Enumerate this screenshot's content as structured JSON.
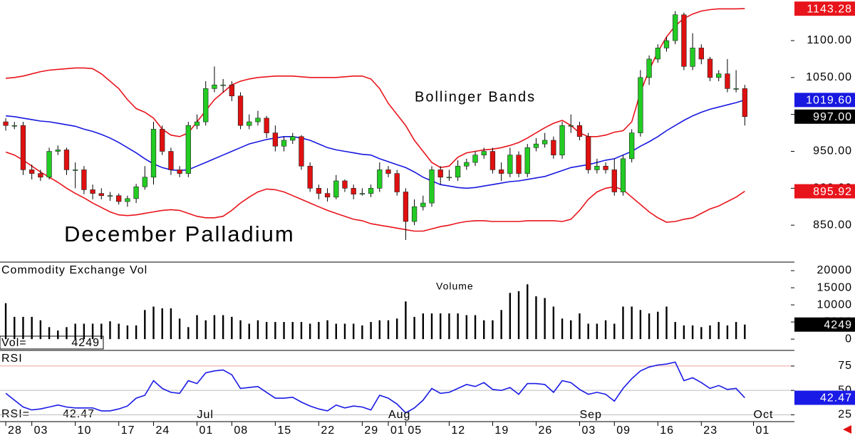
{
  "chart_data": [
    {
      "type": "candlestick",
      "title": "December Palladium",
      "annotation": "Bollinger Bands",
      "xlim": [
        -0.66,
        90.3
      ],
      "ylim": [
        800,
        1155
      ],
      "yticks": [
        {
          "value": 850,
          "label": "850.00"
        },
        {
          "value": 900,
          "label": "900.00"
        },
        {
          "value": 950,
          "label": "950.00"
        },
        {
          "value": 1000,
          "label": "1000.00"
        },
        {
          "value": 1050,
          "label": "1050.00"
        },
        {
          "value": 1100,
          "label": "1100.00"
        }
      ],
      "up_color": "#22cc22",
      "down_color": "#e01010",
      "close_label": "997.00",
      "open": [
        990,
        985,
        985,
        925,
        920,
        915,
        950,
        952,
        925,
        925,
        898,
        893,
        890,
        890,
        882,
        886,
        902,
        915,
        980,
        950,
        925,
        920,
        985,
        990,
        1035,
        1040,
        1040,
        1025,
        985,
        990,
        995,
        975,
        957,
        965,
        970,
        930,
        900,
        893,
        888,
        910,
        900,
        892,
        893,
        900,
        925,
        920,
        895,
        855,
        875,
        880,
        925,
        915,
        915,
        930,
        935,
        945,
        950,
        925,
        920,
        945,
        920,
        955,
        960,
        965,
        945,
        985,
        985,
        970,
        925,
        930,
        925,
        895,
        940,
        975,
        1050,
        1075,
        1090,
        1100,
        1135,
        1065,
        1090,
        1075,
        1050,
        1055,
        1035,
        1035
      ],
      "high": [
        995,
        990,
        990,
        932,
        925,
        955,
        958,
        955,
        935,
        930,
        905,
        900,
        895,
        893,
        890,
        906,
        930,
        990,
        985,
        955,
        930,
        990,
        1000,
        1045,
        1065,
        1048,
        1045,
        1030,
        1000,
        1005,
        998,
        985,
        970,
        975,
        972,
        935,
        905,
        900,
        918,
        912,
        905,
        900,
        905,
        935,
        930,
        925,
        900,
        885,
        890,
        930,
        930,
        925,
        938,
        940,
        950,
        955,
        955,
        935,
        955,
        950,
        960,
        968,
        975,
        970,
        990,
        1000,
        990,
        975,
        940,
        935,
        940,
        945,
        980,
        1060,
        1080,
        1095,
        1105,
        1140,
        1138,
        1110,
        1095,
        1078,
        1060,
        1075,
        1060,
        1040
      ],
      "low": [
        978,
        980,
        918,
        912,
        910,
        912,
        945,
        918,
        900,
        892,
        885,
        885,
        883,
        878,
        875,
        880,
        898,
        905,
        945,
        918,
        915,
        915,
        980,
        985,
        1030,
        1030,
        1018,
        980,
        980,
        985,
        968,
        950,
        950,
        960,
        925,
        895,
        885,
        882,
        885,
        895,
        885,
        890,
        888,
        895,
        915,
        890,
        830,
        850,
        870,
        875,
        905,
        910,
        910,
        925,
        930,
        940,
        920,
        910,
        915,
        915,
        915,
        950,
        955,
        940,
        940,
        975,
        965,
        920,
        920,
        920,
        890,
        890,
        935,
        970,
        1040,
        1070,
        1085,
        1095,
        1060,
        1060,
        1068,
        1045,
        1045,
        1030,
        1030,
        985
      ],
      "close": [
        985,
        985,
        925,
        920,
        915,
        950,
        952,
        925,
        925,
        898,
        893,
        890,
        890,
        882,
        886,
        902,
        915,
        980,
        950,
        925,
        920,
        985,
        990,
        1035,
        1040,
        1040,
        1025,
        985,
        990,
        995,
        975,
        957,
        965,
        970,
        930,
        900,
        893,
        888,
        910,
        900,
        892,
        893,
        900,
        925,
        920,
        895,
        855,
        875,
        880,
        925,
        915,
        915,
        930,
        935,
        945,
        950,
        925,
        920,
        945,
        920,
        955,
        960,
        965,
        945,
        985,
        985,
        970,
        925,
        930,
        925,
        895,
        940,
        975,
        1050,
        1075,
        1090,
        1100,
        1135,
        1065,
        1090,
        1075,
        1050,
        1055,
        1035,
        1035,
        997
      ],
      "bands": [
        {
          "color": "#e8141b",
          "values": [
            1049,
            1050,
            1052,
            1055,
            1058,
            1060,
            1061,
            1062,
            1063,
            1063,
            1062,
            1055,
            1045,
            1035,
            1020,
            1008,
            1003,
            995,
            980,
            972,
            970,
            975,
            990,
            1005,
            1020,
            1030,
            1040,
            1045,
            1048,
            1050,
            1051,
            1052,
            1052,
            1052,
            1051,
            1050,
            1050,
            1050,
            1050,
            1051,
            1052,
            1052,
            1048,
            1035,
            1015,
            1000,
            985,
            965,
            950,
            935,
            928,
            930,
            942,
            948,
            950,
            952,
            953,
            955,
            958,
            962,
            968,
            975,
            982,
            988,
            992,
            985,
            975,
            970,
            970,
            972,
            976,
            978,
            990,
            1030,
            1060,
            1085,
            1105,
            1120,
            1130,
            1136,
            1140,
            1142,
            1143,
            1143,
            1143,
            1143.28
          ]
        },
        {
          "color": "#1818e0",
          "last_label": "1019.60",
          "values": [
            998,
            997,
            995,
            993,
            991,
            990,
            988,
            986,
            984,
            980,
            977,
            973,
            968,
            962,
            955,
            948,
            940,
            933,
            928,
            925,
            924,
            925,
            930,
            935,
            940,
            945,
            950,
            955,
            960,
            963,
            966,
            968,
            970,
            970,
            968,
            965,
            960,
            955,
            952,
            950,
            948,
            946,
            945,
            940,
            936,
            932,
            928,
            922,
            915,
            910,
            905,
            903,
            901,
            900,
            901,
            903,
            905,
            907,
            909,
            910,
            912,
            914,
            916,
            920,
            924,
            928,
            930,
            932,
            935,
            938,
            940,
            945,
            950,
            957,
            963,
            970,
            978,
            985,
            992,
            998,
            1003,
            1007,
            1010,
            1013,
            1016,
            1019.6
          ]
        },
        {
          "color": "#e8141b",
          "values": [
            949,
            945,
            938,
            930,
            922,
            915,
            908,
            900,
            893,
            887,
            880,
            874,
            868,
            864,
            863,
            864,
            866,
            868,
            870,
            871,
            870,
            866,
            862,
            860,
            860,
            862,
            870,
            880,
            888,
            895,
            899,
            898,
            895,
            890,
            885,
            880,
            875,
            870,
            866,
            862,
            858,
            856,
            852,
            850,
            848,
            846,
            844,
            842,
            842,
            845,
            848,
            850,
            853,
            855,
            856,
            856,
            855,
            855,
            855,
            855,
            856,
            856,
            856,
            856,
            855,
            858,
            870,
            885,
            895,
            900,
            902,
            898,
            888,
            878,
            868,
            860,
            854,
            855,
            858,
            860,
            866,
            872,
            876,
            882,
            888,
            895.92
          ]
        }
      ]
    },
    {
      "type": "bar",
      "title": "Commodity Exchange Vol",
      "annotation": "Volume",
      "readout_label": "Vol=",
      "xlim": [
        -0.66,
        90.3
      ],
      "ylim": [
        -3300,
        22500
      ],
      "yticks": [
        0,
        5000,
        10000,
        15000,
        20000
      ],
      "color": "#000000",
      "values": [
        10500,
        6500,
        6500,
        6500,
        5500,
        3500,
        2500,
        3500,
        4500,
        4500,
        4500,
        4500,
        5200,
        4500,
        4000,
        4000,
        8500,
        9500,
        9000,
        9000,
        6000,
        3500,
        7000,
        5500,
        7000,
        7000,
        6500,
        5500,
        4500,
        5500,
        5000,
        5000,
        5000,
        5000,
        5000,
        4500,
        5000,
        5500,
        4500,
        4500,
        4500,
        4000,
        5000,
        5500,
        5500,
        6000,
        11000,
        6500,
        7500,
        7500,
        7500,
        7500,
        7500,
        7000,
        7000,
        5500,
        5500,
        8500,
        13500,
        14000,
        16000,
        12500,
        12000,
        9500,
        6000,
        5500,
        7500,
        4500,
        4500,
        5500,
        4500,
        9500,
        9500,
        8500,
        7500,
        8000,
        9500,
        5000,
        4000,
        4000,
        3500,
        4000,
        5000,
        4000,
        5000,
        4249
      ]
    },
    {
      "type": "line",
      "title": "RSI",
      "readout_label": "RSI=",
      "xlim": [
        -0.66,
        90.3
      ],
      "ylim": [
        18,
        91
      ],
      "yticks": [
        25,
        50,
        75
      ],
      "color": "#1a1ae6",
      "values": [
        47,
        40,
        33,
        30,
        31,
        33,
        35,
        33,
        32,
        32,
        32,
        29,
        29,
        31,
        34,
        42,
        45,
        60,
        52,
        48,
        47,
        60,
        57,
        68,
        70,
        71,
        66,
        52,
        53,
        54,
        48,
        42,
        42,
        43,
        38,
        34,
        31,
        29,
        35,
        32,
        34,
        33,
        30,
        45,
        42,
        36,
        27,
        32,
        40,
        52,
        47,
        48,
        52,
        56,
        54,
        58,
        51,
        50,
        53,
        46,
        57,
        57,
        56,
        48,
        60,
        58,
        51,
        46,
        48,
        46,
        39,
        52,
        62,
        70,
        74,
        76,
        77,
        79,
        60,
        63,
        58,
        52,
        55,
        51,
        52,
        42.47
      ],
      "xticks": [
        {
          "value": 0,
          "label": "28"
        },
        {
          "value": 3,
          "label": "03"
        },
        {
          "value": 8,
          "label": "10"
        },
        {
          "value": 13,
          "label": "17"
        },
        {
          "value": 17,
          "label": "24"
        },
        {
          "value": 22,
          "label": "01"
        },
        {
          "value": 26,
          "label": "08"
        },
        {
          "value": 31,
          "label": "15"
        },
        {
          "value": 36,
          "label": "22"
        },
        {
          "value": 41,
          "label": "29"
        },
        {
          "value": 44,
          "label": "01"
        },
        {
          "value": 46,
          "label": "05"
        },
        {
          "value": 51,
          "label": "12"
        },
        {
          "value": 56,
          "label": "19"
        },
        {
          "value": 61,
          "label": "26"
        },
        {
          "value": 66,
          "label": "03"
        },
        {
          "value": 70,
          "label": "09"
        },
        {
          "value": 75,
          "label": "16"
        },
        {
          "value": 80,
          "label": "23"
        },
        {
          "value": 86,
          "label": "01"
        }
      ],
      "month_ticks": [
        {
          "value": 22,
          "label": "Jul"
        },
        {
          "value": 44,
          "label": "Aug"
        },
        {
          "value": 66,
          "label": "Sep"
        },
        {
          "value": 86,
          "label": "Oct"
        }
      ]
    }
  ]
}
